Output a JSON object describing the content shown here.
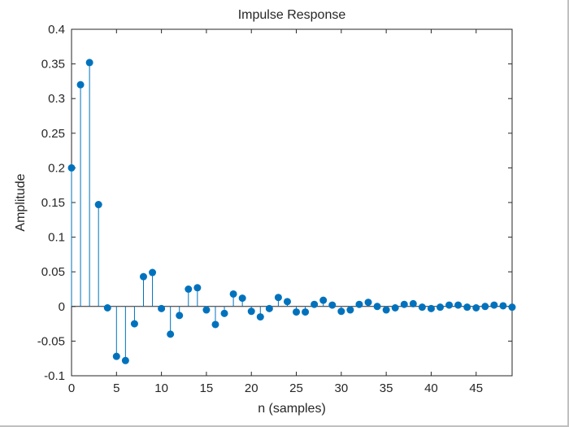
{
  "chart_data": {
    "type": "stem",
    "title": "Impulse Response",
    "xlabel": "n (samples)",
    "ylabel": "Amplitude",
    "xlim": [
      0,
      49
    ],
    "ylim": [
      -0.1,
      0.4
    ],
    "x_ticks": [
      0,
      5,
      10,
      15,
      20,
      25,
      30,
      35,
      40,
      45
    ],
    "y_ticks": [
      -0.1,
      -0.05,
      0,
      0.05,
      0.1,
      0.15,
      0.2,
      0.25,
      0.3,
      0.35,
      0.4
    ],
    "grid": false,
    "legend": "none",
    "marker_color": "#0072BD",
    "axis_color": "#262626",
    "text_color": "#262626",
    "x": [
      0,
      1,
      2,
      3,
      4,
      5,
      6,
      7,
      8,
      9,
      10,
      11,
      12,
      13,
      14,
      15,
      16,
      17,
      18,
      19,
      20,
      21,
      22,
      23,
      24,
      25,
      26,
      27,
      28,
      29,
      30,
      31,
      32,
      33,
      34,
      35,
      36,
      37,
      38,
      39,
      40,
      41,
      42,
      43,
      44,
      45,
      46,
      47,
      48,
      49
    ],
    "values": [
      0.2,
      0.32,
      0.352,
      0.147,
      -0.002,
      -0.072,
      -0.078,
      -0.025,
      0.043,
      0.049,
      -0.003,
      -0.04,
      -0.013,
      0.025,
      0.027,
      -0.005,
      -0.026,
      -0.01,
      0.018,
      0.012,
      -0.007,
      -0.015,
      -0.003,
      0.013,
      0.007,
      -0.008,
      -0.008,
      0.003,
      0.009,
      0.002,
      -0.007,
      -0.005,
      0.003,
      0.006,
      0.0,
      -0.005,
      -0.002,
      0.003,
      0.004,
      -0.001,
      -0.003,
      -0.001,
      0.002,
      0.002,
      -0.001,
      -0.002,
      0.0,
      0.002,
      0.001,
      -0.001
    ]
  }
}
